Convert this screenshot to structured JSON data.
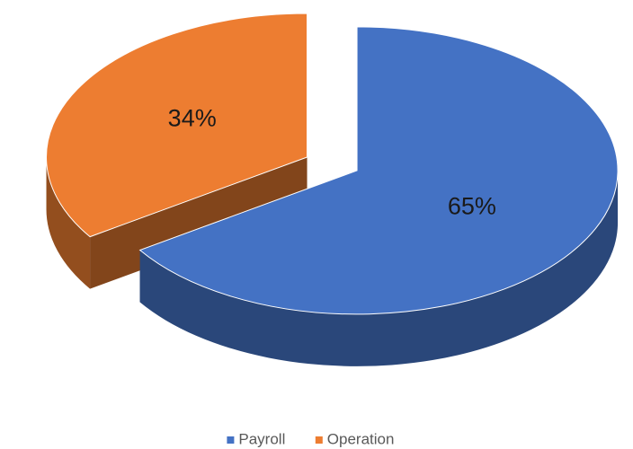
{
  "chart_data": {
    "type": "pie",
    "categories": [
      "Payroll",
      "Operation"
    ],
    "values": [
      65,
      34
    ],
    "value_labels": [
      "65%",
      "34%"
    ],
    "colors": [
      "#4472c4",
      "#ed7d31"
    ],
    "legend": "bottom"
  }
}
